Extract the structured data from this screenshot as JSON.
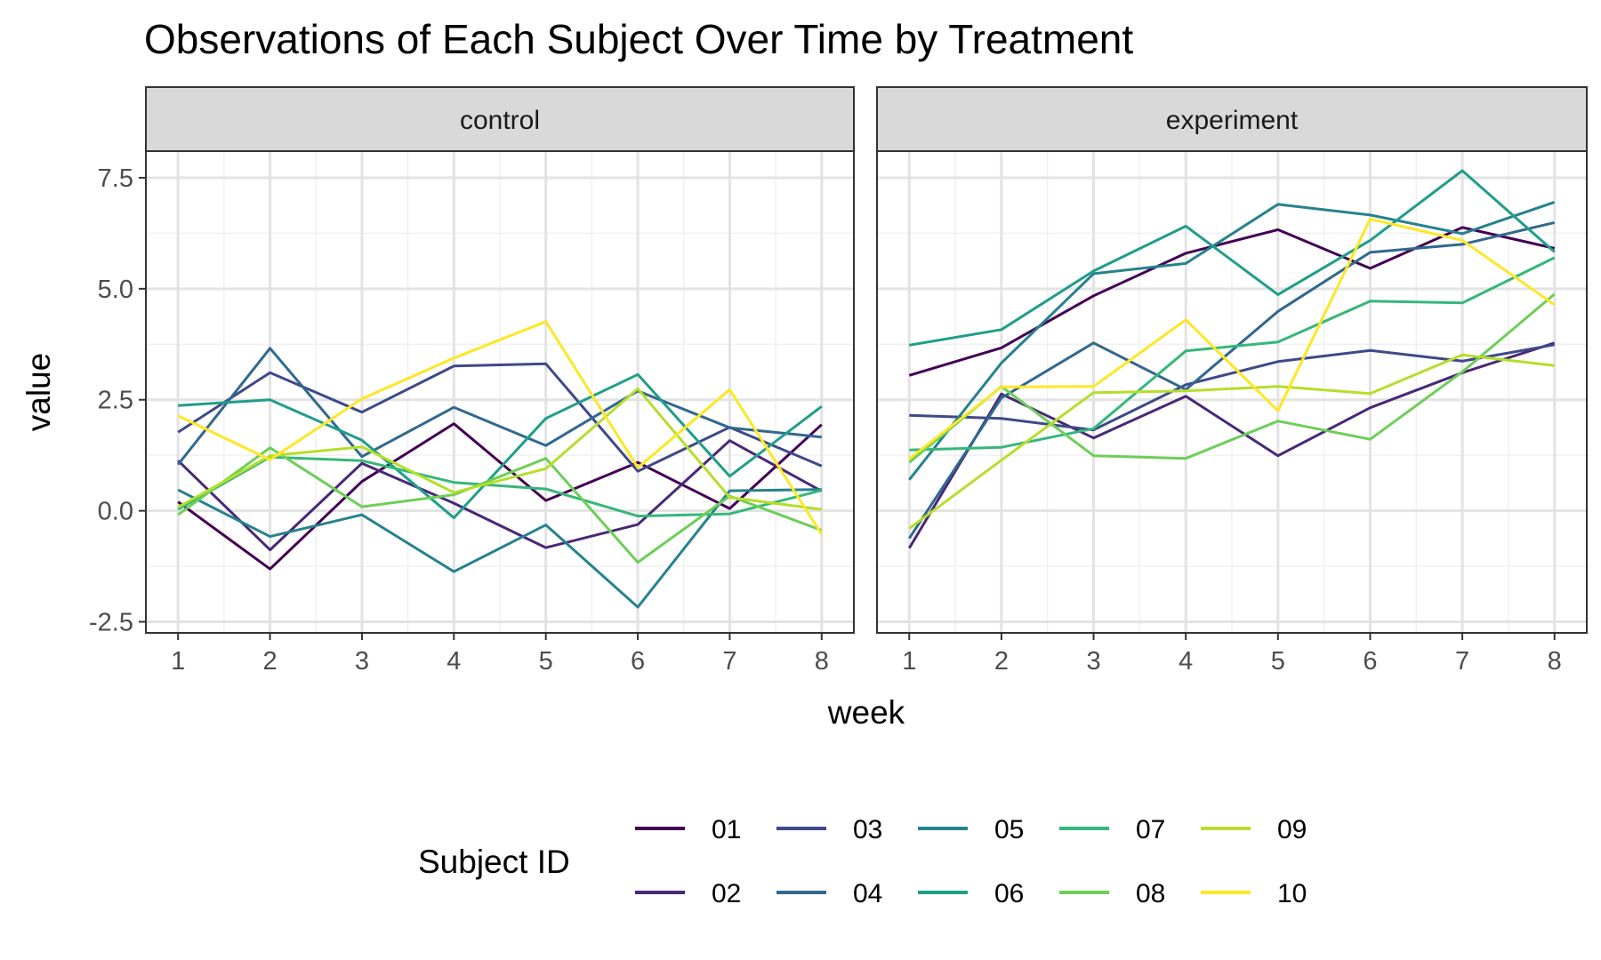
{
  "chart_data": {
    "type": "line",
    "title": "Observations of Each Subject Over Time by Treatment",
    "xlabel": "week",
    "ylabel": "value",
    "x": [
      1,
      2,
      3,
      4,
      5,
      6,
      7,
      8
    ],
    "x_ticks": [
      "1",
      "2",
      "3",
      "4",
      "5",
      "6",
      "7",
      "8"
    ],
    "y_ticks": [
      {
        "value": -2.5,
        "label": "-2.5"
      },
      {
        "value": 0,
        "label": "0.0"
      },
      {
        "value": 2.5,
        "label": "2.5"
      },
      {
        "value": 5,
        "label": "5.0"
      },
      {
        "value": 7.5,
        "label": "7.5"
      }
    ],
    "ylim": [
      -2.75,
      8.1
    ],
    "xlim": [
      0.65,
      8.35
    ],
    "grid": true,
    "legend": {
      "title": "Subject ID",
      "position": "bottom",
      "items": [
        "01",
        "02",
        "03",
        "04",
        "05",
        "06",
        "07",
        "08",
        "09",
        "10"
      ]
    },
    "series_colors": {
      "01": "#440154",
      "02": "#482878",
      "03": "#3e4989",
      "04": "#31688e",
      "05": "#26828e",
      "06": "#1f9e89",
      "07": "#35b779",
      "08": "#6ece58",
      "09": "#b5de2b",
      "10": "#fde725"
    },
    "panels": [
      {
        "name": "control",
        "series": [
          {
            "name": "01",
            "values": [
              0.2,
              -1.31,
              0.66,
              1.96,
              0.23,
              1.09,
              0.05,
              1.94
            ]
          },
          {
            "name": "02",
            "values": [
              1.13,
              -0.88,
              1.07,
              0.17,
              -0.83,
              -0.31,
              1.58,
              0.44
            ]
          },
          {
            "name": "03",
            "values": [
              1.77,
              3.11,
              2.22,
              3.26,
              3.31,
              0.89,
              1.88,
              1.01
            ]
          },
          {
            "name": "04",
            "values": [
              1.04,
              3.66,
              1.22,
              2.33,
              1.47,
              2.7,
              1.87,
              1.66
            ]
          },
          {
            "name": "05",
            "values": [
              0.47,
              -0.58,
              -0.09,
              -1.37,
              -0.32,
              -2.17,
              0.45,
              0.48
            ]
          },
          {
            "name": "06",
            "values": [
              2.37,
              2.5,
              1.59,
              -0.16,
              2.08,
              3.07,
              0.78,
              2.35
            ]
          },
          {
            "name": "07",
            "values": [
              0.03,
              1.21,
              1.13,
              0.64,
              0.49,
              -0.12,
              -0.07,
              0.46
            ]
          },
          {
            "name": "08",
            "values": [
              -0.09,
              1.42,
              0.09,
              0.36,
              1.18,
              -1.16,
              0.33,
              -0.44
            ]
          },
          {
            "name": "09",
            "values": [
              0.08,
              1.24,
              1.44,
              0.41,
              0.95,
              2.75,
              0.3,
              0.03
            ]
          },
          {
            "name": "10",
            "values": [
              2.14,
              1.15,
              2.52,
              3.44,
              4.26,
              0.97,
              2.73,
              -0.53
            ]
          }
        ]
      },
      {
        "name": "experiment",
        "series": [
          {
            "name": "01",
            "values": [
              3.05,
              3.67,
              4.84,
              5.8,
              6.33,
              5.46,
              6.38,
              5.91
            ]
          },
          {
            "name": "02",
            "values": [
              -0.84,
              2.63,
              1.64,
              2.58,
              1.24,
              2.32,
              3.11,
              3.78
            ]
          },
          {
            "name": "03",
            "values": [
              2.15,
              2.08,
              1.82,
              2.84,
              3.36,
              3.61,
              3.37,
              3.74
            ]
          },
          {
            "name": "04",
            "values": [
              -0.62,
              2.54,
              3.78,
              2.73,
              4.49,
              5.82,
              6.0,
              6.49
            ]
          },
          {
            "name": "05",
            "values": [
              0.7,
              3.33,
              5.34,
              5.57,
              6.9,
              6.66,
              6.24,
              6.95
            ]
          },
          {
            "name": "06",
            "values": [
              3.73,
              4.08,
              5.4,
              6.41,
              4.87,
              6.09,
              7.66,
              5.83
            ]
          },
          {
            "name": "07",
            "values": [
              1.37,
              1.43,
              1.85,
              3.6,
              3.8,
              4.72,
              4.68,
              5.7
            ]
          },
          {
            "name": "08",
            "values": [
              1.09,
              2.8,
              1.24,
              1.18,
              2.02,
              1.61,
              3.13,
              4.88
            ]
          },
          {
            "name": "09",
            "values": [
              -0.4,
              1.14,
              2.66,
              2.7,
              2.8,
              2.64,
              3.51,
              3.27
            ]
          },
          {
            "name": "10",
            "values": [
              1.17,
              2.79,
              2.8,
              4.3,
              2.25,
              6.57,
              6.09,
              4.64
            ]
          }
        ]
      }
    ]
  }
}
